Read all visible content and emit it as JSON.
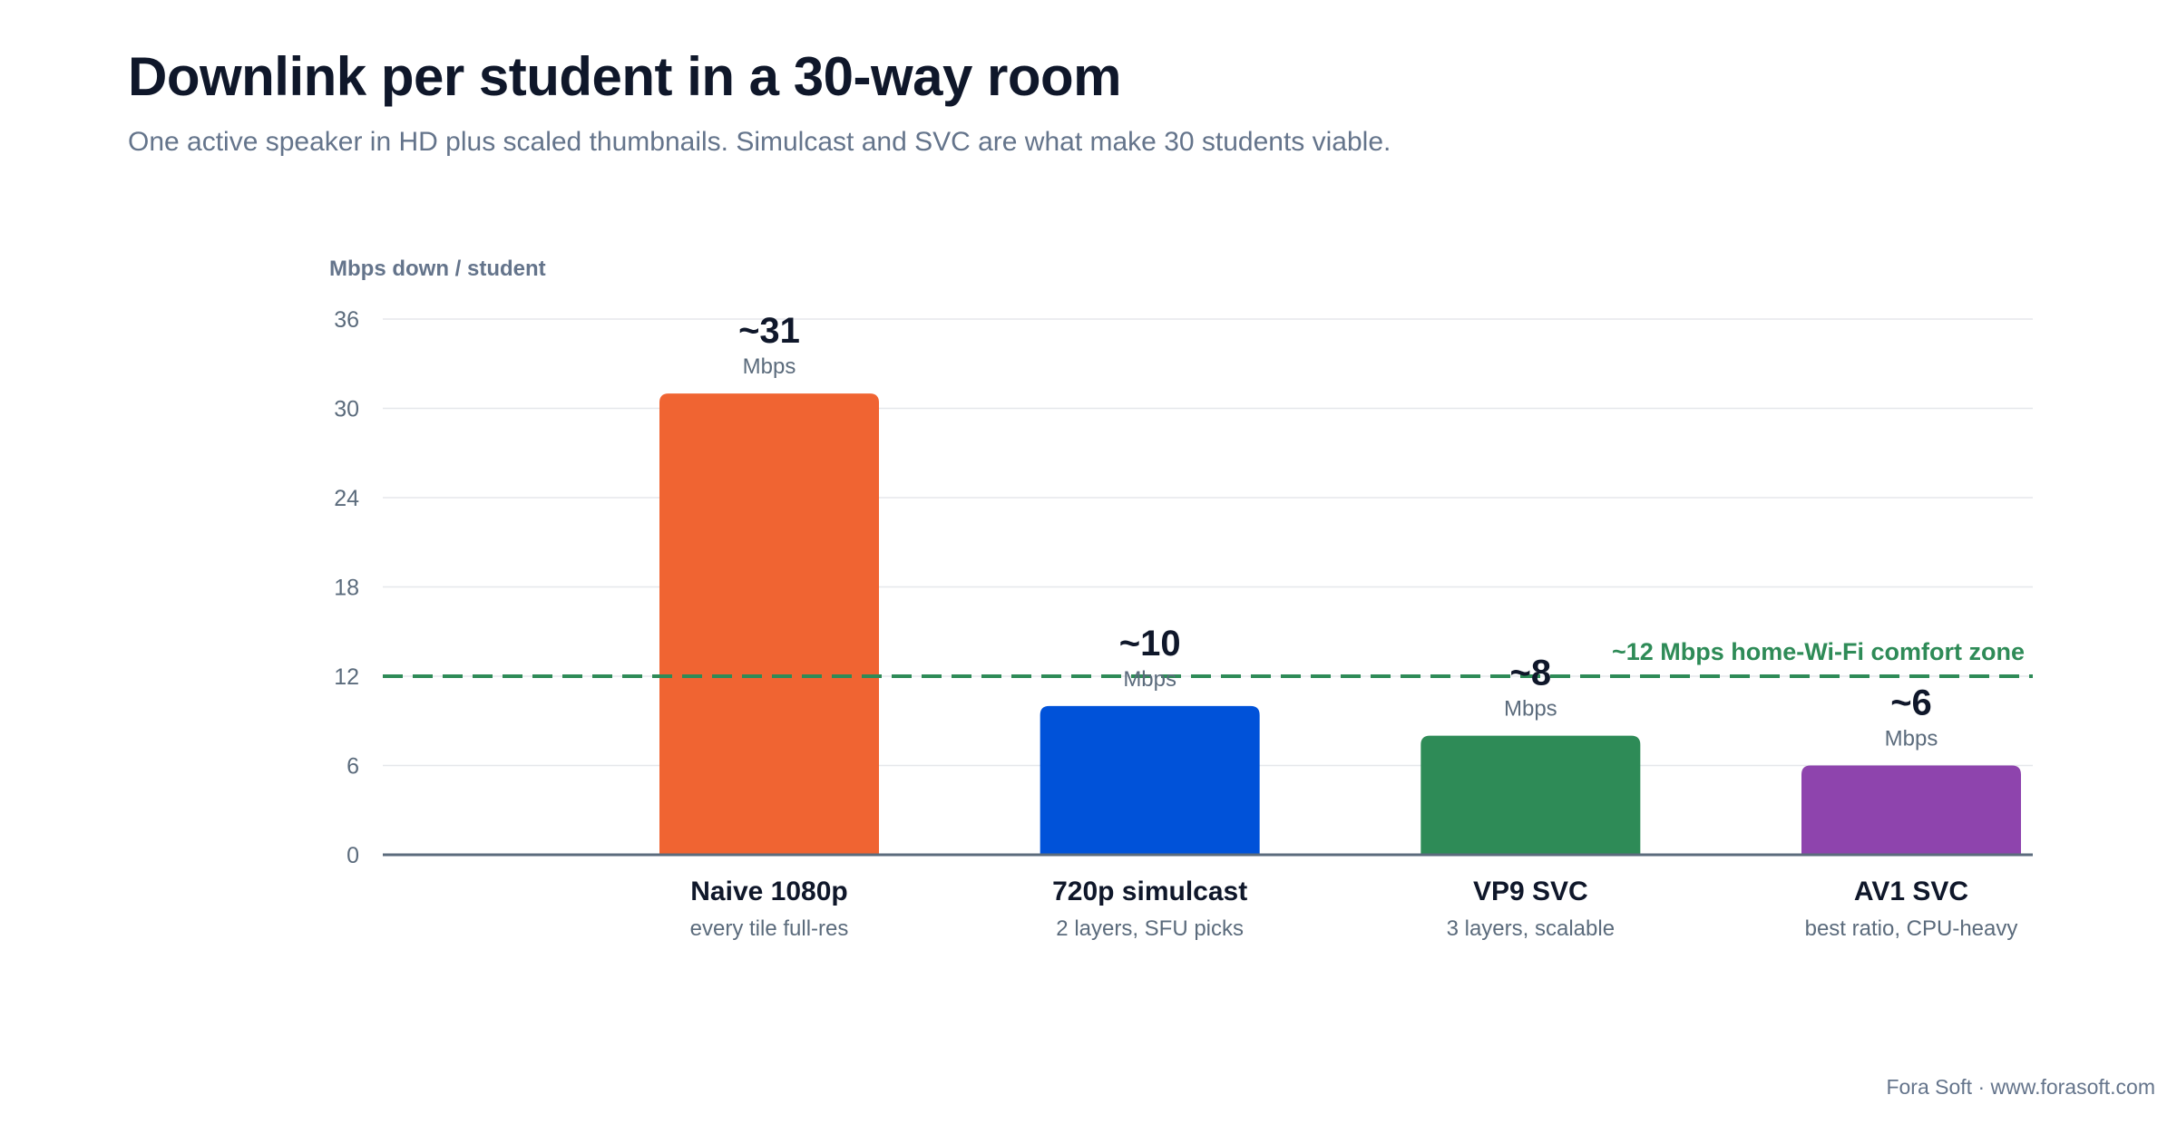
{
  "header": {
    "title": "Downlink per student in a 30-way room",
    "subtitle": "One active speaker in HD plus scaled thumbnails. Simulcast and SVC are what make 30 students viable."
  },
  "footer": {
    "text": "Fora Soft · www.forasoft.com"
  },
  "chart_data": {
    "type": "bar",
    "title": "Downlink per student in a 30-way room",
    "ylabel": "Mbps down / student",
    "xlabel": "",
    "ylim": [
      0,
      36
    ],
    "yticks": [
      0,
      6,
      12,
      18,
      24,
      30,
      36
    ],
    "grid": true,
    "categories": [
      "Naive 1080p",
      "720p simulcast",
      "VP9 SVC",
      "AV1 SVC"
    ],
    "sublabels": [
      "every tile full-res",
      "2 layers, SFU picks",
      "3 layers, scalable",
      "best ratio, CPU-heavy"
    ],
    "values": [
      31,
      10,
      8,
      6
    ],
    "value_labels": [
      "~31",
      "~10",
      "~8",
      "~6"
    ],
    "value_unit": "Mbps",
    "colors": [
      "#f06432",
      "#0052d9",
      "#2e8b57",
      "#8e44ad"
    ],
    "reference_line": {
      "value": 12,
      "label": "~12 Mbps home-Wi-Fi comfort zone",
      "color": "#2e8b57"
    }
  }
}
